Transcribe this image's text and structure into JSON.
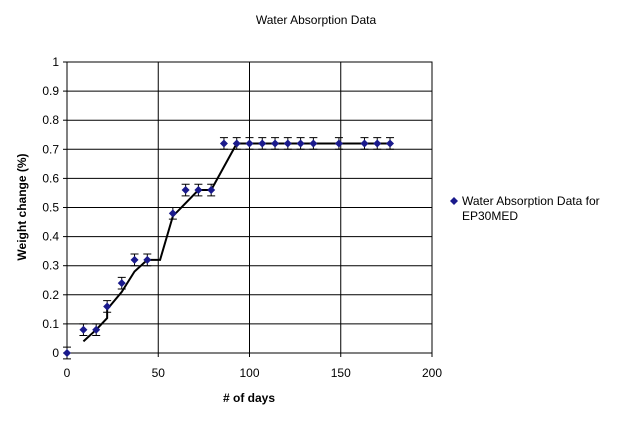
{
  "chart_data": {
    "type": "scatter",
    "title": "Water Absorption Data",
    "xlabel": "# of days",
    "ylabel": "Weight change (%)",
    "xlim": [
      0,
      200
    ],
    "ylim": [
      0,
      1
    ],
    "xticks": [
      "0",
      "50",
      "100",
      "150",
      "200"
    ],
    "yticks": [
      "0",
      "0.1",
      "0.2",
      "0.3",
      "0.4",
      "0.5",
      "0.6",
      "0.7",
      "0.8",
      "0.9",
      "1"
    ],
    "grid": true,
    "legend_position": "right",
    "series": [
      {
        "name": "Water Absorption Data for EP30MED",
        "color": "#1a1a8c",
        "marker": "diamond",
        "error": 0.02,
        "x": [
          0,
          9,
          16,
          22,
          30,
          37,
          44,
          58,
          65,
          72,
          79,
          86,
          93,
          100,
          107,
          114,
          121,
          128,
          135,
          149,
          163,
          170,
          177
        ],
        "y": [
          0,
          0.08,
          0.08,
          0.16,
          0.24,
          0.32,
          0.32,
          0.48,
          0.56,
          0.56,
          0.56,
          0.72,
          0.72,
          0.72,
          0.72,
          0.72,
          0.72,
          0.72,
          0.72,
          0.72,
          0.72,
          0.72,
          0.72
        ]
      }
    ],
    "trendline": {
      "color": "#000000",
      "x": [
        9,
        16,
        22,
        22,
        30,
        37,
        44,
        51,
        58,
        72,
        79,
        93,
        177
      ],
      "y": [
        0.04,
        0.08,
        0.12,
        0.15,
        0.21,
        0.28,
        0.32,
        0.32,
        0.47,
        0.56,
        0.56,
        0.72,
        0.72
      ]
    }
  }
}
